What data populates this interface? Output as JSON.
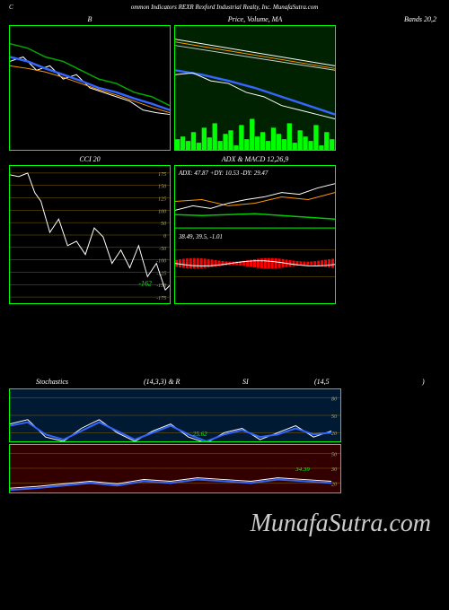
{
  "header": {
    "left": "C",
    "center": "ommon  Indicators REXR Rexford Industrial Realty,  Inc. MunafaSutra.com",
    "right_label": "Bands 20,2"
  },
  "watermark": "MunafaSutra.com",
  "chart_b": {
    "title": "B",
    "type": "line",
    "width": 180,
    "height": 140,
    "background": "#000000",
    "border": "#00ff00",
    "series": [
      {
        "name": "green",
        "color": "#00aa00",
        "width": 1.5,
        "points": [
          [
            0,
            20
          ],
          [
            20,
            25
          ],
          [
            40,
            35
          ],
          [
            60,
            40
          ],
          [
            80,
            50
          ],
          [
            100,
            60
          ],
          [
            120,
            65
          ],
          [
            140,
            75
          ],
          [
            160,
            80
          ],
          [
            180,
            90
          ]
        ]
      },
      {
        "name": "white",
        "color": "#ffffff",
        "width": 1,
        "points": [
          [
            0,
            40
          ],
          [
            15,
            35
          ],
          [
            30,
            50
          ],
          [
            45,
            45
          ],
          [
            60,
            60
          ],
          [
            75,
            55
          ],
          [
            90,
            70
          ],
          [
            105,
            75
          ],
          [
            120,
            80
          ],
          [
            135,
            85
          ],
          [
            150,
            95
          ],
          [
            165,
            98
          ],
          [
            180,
            100
          ]
        ]
      },
      {
        "name": "blue",
        "color": "#3366ff",
        "width": 2.5,
        "points": [
          [
            0,
            35
          ],
          [
            20,
            40
          ],
          [
            40,
            48
          ],
          [
            60,
            55
          ],
          [
            80,
            62
          ],
          [
            100,
            70
          ],
          [
            120,
            75
          ],
          [
            140,
            82
          ],
          [
            160,
            88
          ],
          [
            180,
            95
          ]
        ]
      },
      {
        "name": "orange",
        "color": "#ff9900",
        "width": 1,
        "points": [
          [
            0,
            45
          ],
          [
            20,
            48
          ],
          [
            40,
            52
          ],
          [
            60,
            58
          ],
          [
            80,
            65
          ],
          [
            100,
            72
          ],
          [
            120,
            78
          ],
          [
            140,
            85
          ],
          [
            160,
            92
          ],
          [
            180,
            98
          ]
        ]
      }
    ]
  },
  "chart_price": {
    "title": "Price,  Volume,  MA",
    "type": "line-volume",
    "width": 180,
    "height": 140,
    "background": "#002200",
    "border": "#00ff00",
    "series": [
      {
        "name": "upper1",
        "color": "#ffffff",
        "width": 1,
        "points": [
          [
            0,
            15
          ],
          [
            180,
            45
          ]
        ]
      },
      {
        "name": "upper2",
        "color": "#ff9900",
        "width": 1,
        "points": [
          [
            0,
            18
          ],
          [
            180,
            48
          ]
        ]
      },
      {
        "name": "upper3",
        "color": "#cccccc",
        "width": 1,
        "points": [
          [
            0,
            22
          ],
          [
            180,
            50
          ]
        ]
      },
      {
        "name": "blue",
        "color": "#3366ff",
        "width": 2.5,
        "points": [
          [
            0,
            50
          ],
          [
            30,
            55
          ],
          [
            60,
            62
          ],
          [
            90,
            70
          ],
          [
            120,
            80
          ],
          [
            150,
            90
          ],
          [
            180,
            100
          ]
        ]
      },
      {
        "name": "white",
        "color": "#ffffff",
        "width": 1,
        "points": [
          [
            0,
            55
          ],
          [
            20,
            53
          ],
          [
            40,
            62
          ],
          [
            60,
            65
          ],
          [
            80,
            75
          ],
          [
            100,
            80
          ],
          [
            120,
            90
          ],
          [
            140,
            95
          ],
          [
            160,
            100
          ],
          [
            180,
            105
          ]
        ]
      }
    ],
    "volume": {
      "color": "#00ff00",
      "bars": [
        12,
        15,
        10,
        20,
        8,
        25,
        14,
        30,
        10,
        18,
        22,
        5,
        28,
        12,
        35,
        15,
        20,
        10,
        25,
        18,
        12,
        30,
        8,
        22,
        15,
        10,
        28,
        5,
        20,
        12
      ]
    }
  },
  "chart_cci": {
    "title": "CCI 20",
    "type": "line",
    "width": 180,
    "height": 155,
    "background": "#000000",
    "border": "#00ff00",
    "ylabels": [
      175,
      150,
      125,
      100,
      50,
      0,
      -50,
      -100,
      -125,
      -150,
      -175
    ],
    "grid_color": "#886600",
    "highlight": {
      "label": "-162",
      "color": "#00ff00"
    },
    "line": {
      "color": "#ffffff",
      "width": 1,
      "points": [
        [
          0,
          10
        ],
        [
          10,
          12
        ],
        [
          20,
          8
        ],
        [
          28,
          30
        ],
        [
          35,
          40
        ],
        [
          45,
          75
        ],
        [
          55,
          60
        ],
        [
          65,
          90
        ],
        [
          75,
          85
        ],
        [
          85,
          100
        ],
        [
          95,
          70
        ],
        [
          105,
          80
        ],
        [
          115,
          110
        ],
        [
          125,
          95
        ],
        [
          135,
          115
        ],
        [
          145,
          90
        ],
        [
          155,
          125
        ],
        [
          165,
          110
        ],
        [
          175,
          140
        ],
        [
          180,
          135
        ]
      ]
    }
  },
  "chart_adx": {
    "title": "ADX    & MACD 12,26,9",
    "type": "multi",
    "width": 180,
    "height": 155,
    "text_top": "ADX: 47.87 +DY: 10.53 -DY: 29.47",
    "text_mid": "38.49,  39.5,  -1.01",
    "adx_lines": [
      {
        "name": "green",
        "color": "#00cc00",
        "width": 1.5,
        "points": [
          [
            0,
            55
          ],
          [
            30,
            56
          ],
          [
            60,
            55
          ],
          [
            90,
            54
          ],
          [
            120,
            56
          ],
          [
            150,
            58
          ],
          [
            180,
            60
          ]
        ]
      },
      {
        "name": "orange",
        "color": "#ff9900",
        "width": 1,
        "points": [
          [
            0,
            40
          ],
          [
            30,
            38
          ],
          [
            60,
            45
          ],
          [
            90,
            42
          ],
          [
            120,
            35
          ],
          [
            150,
            38
          ],
          [
            180,
            30
          ]
        ]
      },
      {
        "name": "white",
        "color": "#ffffff",
        "width": 1,
        "points": [
          [
            0,
            50
          ],
          [
            20,
            45
          ],
          [
            40,
            48
          ],
          [
            60,
            42
          ],
          [
            80,
            38
          ],
          [
            100,
            35
          ],
          [
            120,
            30
          ],
          [
            140,
            32
          ],
          [
            160,
            25
          ],
          [
            180,
            20
          ]
        ]
      }
    ],
    "macd": {
      "bars_color": "#ff0000",
      "line_color": "#ffffff"
    }
  },
  "stochastics": {
    "title_left": "Stochastics",
    "title_mid": "(14,3,3) & R",
    "title_mid2": "SI",
    "title_right": "(14,5",
    "title_far_right": ")",
    "chart1": {
      "bg": "#001a33",
      "border": "#00ff00",
      "ylabels": [
        80,
        50,
        20
      ],
      "grid": "#886600",
      "lines": [
        {
          "color": "#ffffff",
          "points": [
            [
              0,
              40
            ],
            [
              20,
              35
            ],
            [
              40,
              55
            ],
            [
              60,
              60
            ],
            [
              80,
              45
            ],
            [
              100,
              35
            ],
            [
              120,
              50
            ],
            [
              140,
              60
            ],
            [
              160,
              48
            ],
            [
              180,
              40
            ],
            [
              200,
              55
            ],
            [
              220,
              62
            ],
            [
              240,
              50
            ],
            [
              260,
              45
            ],
            [
              280,
              58
            ],
            [
              300,
              50
            ],
            [
              320,
              42
            ],
            [
              340,
              55
            ],
            [
              360,
              48
            ]
          ]
        },
        {
          "color": "#3366ff",
          "width": 2,
          "points": [
            [
              0,
              42
            ],
            [
              20,
              38
            ],
            [
              40,
              52
            ],
            [
              60,
              58
            ],
            [
              80,
              48
            ],
            [
              100,
              38
            ],
            [
              120,
              48
            ],
            [
              140,
              58
            ],
            [
              160,
              50
            ],
            [
              180,
              42
            ],
            [
              200,
              52
            ],
            [
              220,
              60
            ],
            [
              240,
              52
            ],
            [
              260,
              47
            ],
            [
              280,
              55
            ],
            [
              300,
              52
            ],
            [
              320,
              45
            ],
            [
              340,
              52
            ],
            [
              360,
              50
            ]
          ]
        }
      ]
    },
    "chart2": {
      "bg": "#330000",
      "border": "#00ff00",
      "ylabels": [
        50,
        30,
        20
      ],
      "grid": "#886600",
      "lines": [
        {
          "color": "#ffffff",
          "points": [
            [
              0,
              50
            ],
            [
              30,
              48
            ],
            [
              60,
              45
            ],
            [
              90,
              42
            ],
            [
              120,
              45
            ],
            [
              150,
              40
            ],
            [
              180,
              42
            ],
            [
              210,
              38
            ],
            [
              240,
              40
            ],
            [
              270,
              42
            ],
            [
              300,
              38
            ],
            [
              330,
              40
            ],
            [
              360,
              42
            ]
          ]
        },
        {
          "color": "#3366ff",
          "width": 2,
          "points": [
            [
              0,
              52
            ],
            [
              30,
              50
            ],
            [
              60,
              47
            ],
            [
              90,
              44
            ],
            [
              120,
              47
            ],
            [
              150,
              42
            ],
            [
              180,
              44
            ],
            [
              210,
              40
            ],
            [
              240,
              42
            ],
            [
              270,
              44
            ],
            [
              300,
              40
            ],
            [
              330,
              42
            ],
            [
              360,
              44
            ]
          ]
        }
      ]
    }
  }
}
